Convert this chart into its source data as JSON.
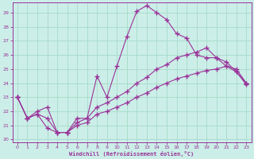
{
  "xlabel": "Windchill (Refroidissement éolien,°C)",
  "bg_color": "#cceee8",
  "line_color": "#993399",
  "grid_color": "#aaddcc",
  "xlim_min": -0.5,
  "xlim_max": 23.5,
  "ylim_min": 19.8,
  "ylim_max": 29.7,
  "yticks": [
    20,
    21,
    22,
    23,
    24,
    25,
    26,
    27,
    28,
    29
  ],
  "xticks": [
    0,
    1,
    2,
    3,
    4,
    5,
    6,
    7,
    8,
    9,
    10,
    11,
    12,
    13,
    14,
    15,
    16,
    17,
    18,
    19,
    20,
    21,
    22,
    23
  ],
  "line1_x": [
    0,
    1,
    2,
    3,
    4,
    5,
    6,
    7,
    8,
    9,
    10,
    11,
    12,
    13,
    14,
    15,
    16,
    17,
    18,
    19,
    20,
    21,
    22,
    23
  ],
  "line1_y": [
    23.0,
    21.5,
    21.8,
    20.8,
    20.5,
    20.5,
    21.2,
    21.5,
    24.5,
    23.0,
    25.2,
    27.3,
    29.1,
    29.5,
    29.0,
    28.5,
    27.5,
    27.2,
    26.0,
    25.8,
    25.8,
    25.5,
    24.8,
    24.0
  ],
  "line2_x": [
    0,
    1,
    2,
    3,
    4,
    5,
    6,
    7,
    8,
    9,
    10,
    11,
    12,
    13,
    14,
    15,
    16,
    17,
    18,
    19,
    20,
    21,
    22,
    23
  ],
  "line2_y": [
    23.0,
    21.5,
    22.0,
    22.3,
    20.5,
    20.5,
    21.5,
    21.5,
    22.3,
    22.6,
    23.0,
    23.4,
    24.0,
    24.4,
    25.0,
    25.3,
    25.8,
    26.0,
    26.2,
    26.5,
    25.8,
    25.2,
    25.0,
    24.0
  ],
  "line3_x": [
    0,
    1,
    2,
    3,
    4,
    5,
    6,
    7,
    8,
    9,
    10,
    11,
    12,
    13,
    14,
    15,
    16,
    17,
    18,
    19,
    20,
    21,
    22,
    23
  ],
  "line3_y": [
    23.0,
    21.5,
    21.8,
    21.5,
    20.5,
    20.5,
    21.0,
    21.2,
    21.8,
    22.0,
    22.3,
    22.6,
    23.0,
    23.3,
    23.7,
    24.0,
    24.3,
    24.5,
    24.7,
    24.9,
    25.0,
    25.2,
    24.8,
    23.9
  ]
}
